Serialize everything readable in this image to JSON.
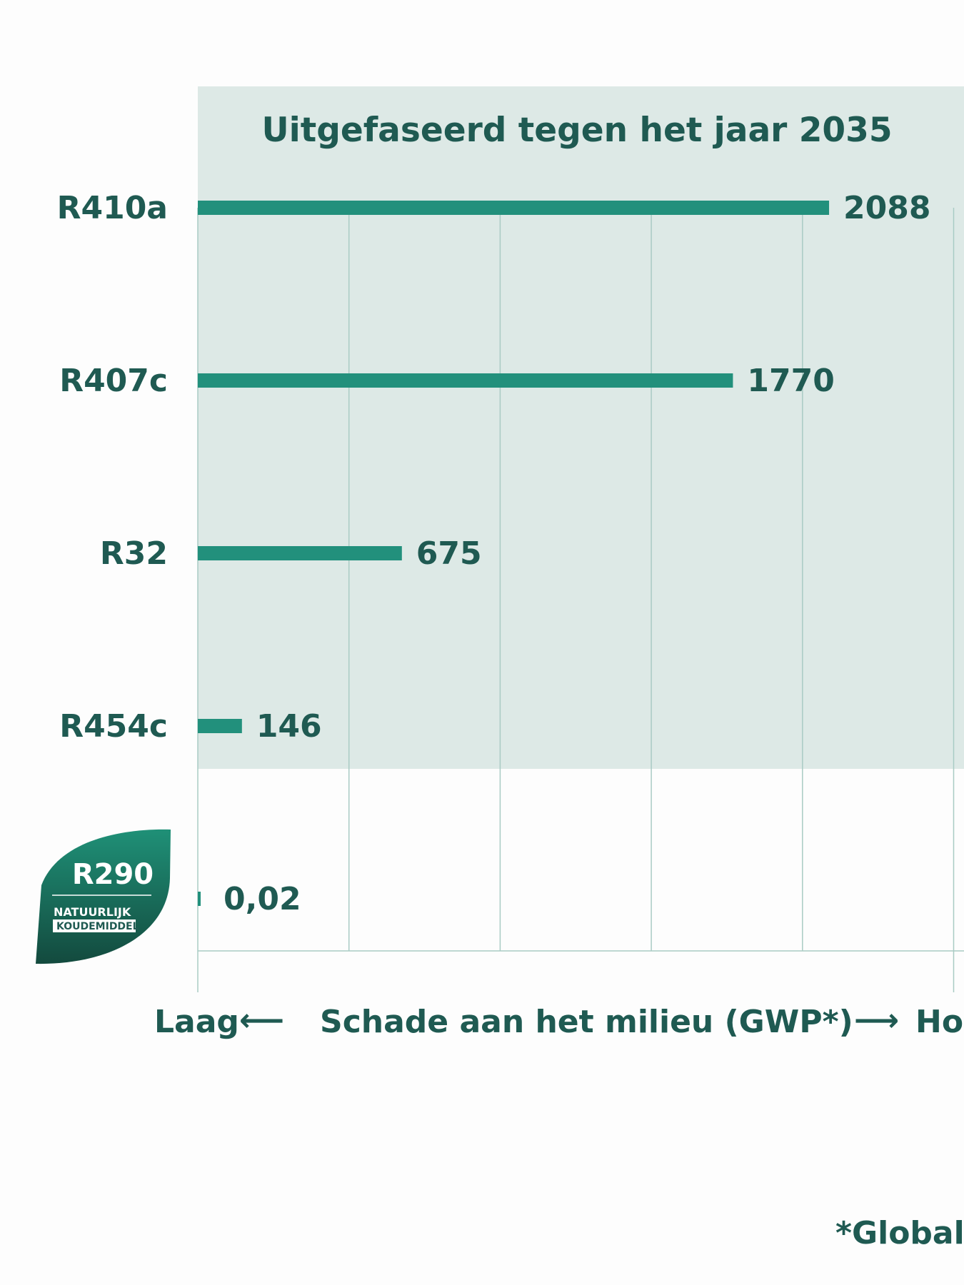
{
  "chart_data": {
    "type": "bar",
    "orientation": "horizontal",
    "title": "Uitgefaseerd tegen het jaar 2035",
    "categories": [
      "R410a",
      "R407c",
      "R32",
      "R454c",
      "R290"
    ],
    "values": [
      2088,
      1770,
      675,
      146,
      0.02
    ],
    "value_labels": [
      "2088",
      "1770",
      "675",
      "146",
      "0,02"
    ],
    "xlim": [
      0,
      2500
    ],
    "grid": true,
    "shaded_region_label": "Uitgefaseerd tegen het jaar 2035",
    "colors": {
      "bar": "#22907c",
      "shade": "#dde9e6",
      "grid": "#a9cbc4",
      "text": "#1f5a52",
      "badge_top": "#1f9077",
      "badge_bottom": "#134a3e"
    }
  },
  "axis": {
    "low_label": "Laag",
    "label": "Schade aan het milieu (GWP*)",
    "high_label": "Hoog",
    "left_arrow": "⟵",
    "right_arrow": "⟶"
  },
  "badge": {
    "name": "R290",
    "line1": "NATUURLIJK",
    "line2": "KOUDEMIDDEL",
    "icon": "leaf-icon"
  },
  "footnote": "*Global"
}
